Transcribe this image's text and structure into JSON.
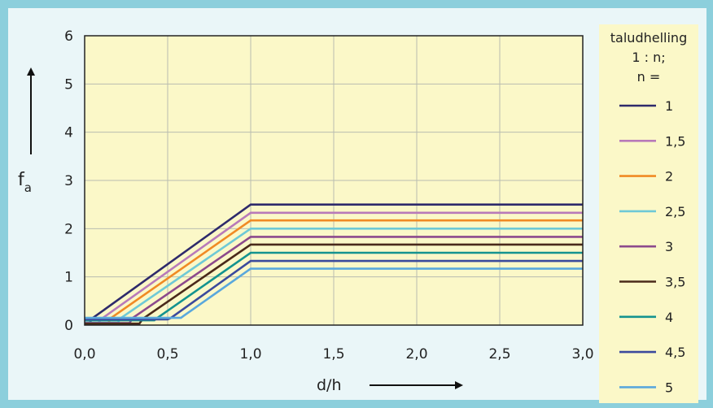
{
  "chart_data": {
    "type": "line",
    "xlabel": "d/h",
    "ylabel": "f",
    "ylabel_subscript": "a",
    "xlim": [
      0,
      3
    ],
    "ylim": [
      0,
      6
    ],
    "x_ticks": [
      "0,0",
      "0,5",
      "1,0",
      "1,5",
      "2,0",
      "2,5",
      "3,0"
    ],
    "y_ticks": [
      "0",
      "1",
      "2",
      "3",
      "4",
      "5",
      "6"
    ],
    "grid": true,
    "legend_title": [
      "taludhelling",
      "1 : n;",
      "n ="
    ],
    "legend_position": "right",
    "series": [
      {
        "name": "1",
        "color": "#2e2a6b",
        "x": [
          0,
          0.03,
          0.05,
          1.0,
          3.0
        ],
        "y": [
          0.05,
          0.05,
          0.15,
          2.5,
          2.5
        ]
      },
      {
        "name": "1,5",
        "color": "#b87ab9",
        "x": [
          0,
          0.08,
          0.11,
          1.0,
          3.0
        ],
        "y": [
          0.04,
          0.04,
          0.15,
          2.33,
          2.33
        ]
      },
      {
        "name": "2",
        "color": "#f08a24",
        "x": [
          0,
          0.14,
          0.16,
          1.0,
          3.0
        ],
        "y": [
          0.03,
          0.03,
          0.15,
          2.17,
          2.17
        ]
      },
      {
        "name": "2,5",
        "color": "#6ec9d6",
        "x": [
          0,
          0.2,
          0.22,
          1.0,
          3.0
        ],
        "y": [
          0.05,
          0.05,
          0.15,
          2.0,
          2.0
        ]
      },
      {
        "name": "3",
        "color": "#8c4a8c",
        "x": [
          0,
          0.27,
          0.29,
          1.0,
          3.0
        ],
        "y": [
          0.04,
          0.04,
          0.15,
          1.83,
          1.83
        ]
      },
      {
        "name": "3,5",
        "color": "#4a2a1a",
        "x": [
          0,
          0.33,
          0.35,
          1.0,
          3.0
        ],
        "y": [
          0.03,
          0.03,
          0.13,
          1.67,
          1.67
        ]
      },
      {
        "name": "4",
        "color": "#14938f",
        "x": [
          0,
          0.42,
          0.43,
          1.0,
          3.0
        ],
        "y": [
          0.1,
          0.1,
          0.13,
          1.5,
          1.5
        ]
      },
      {
        "name": "4,5",
        "color": "#3b4a9c",
        "x": [
          0,
          0.5,
          0.52,
          1.0,
          3.0
        ],
        "y": [
          0.12,
          0.12,
          0.15,
          1.33,
          1.33
        ]
      },
      {
        "name": "5",
        "color": "#5aa8dc",
        "x": [
          0,
          0.58,
          0.6,
          1.0,
          3.0
        ],
        "y": [
          0.15,
          0.15,
          0.2,
          1.17,
          1.17
        ]
      }
    ]
  }
}
